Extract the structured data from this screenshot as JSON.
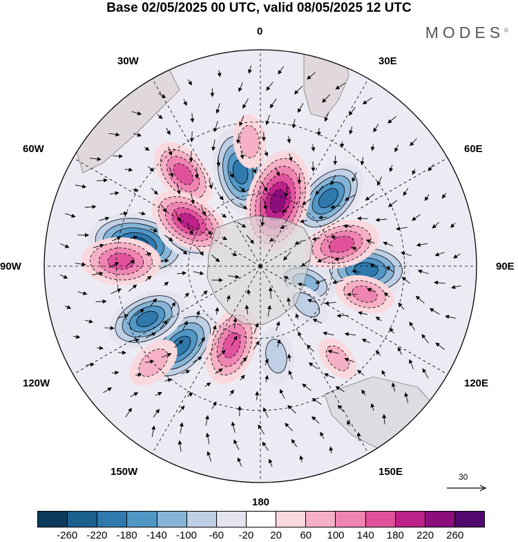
{
  "title": "Base 02/05/2025 00 UTC, valid 08/05/2025 12 UTC",
  "brand": "MODES",
  "brand_mark": "©",
  "meridian_labels": {
    "m0": "0",
    "m30e": "30E",
    "m60e": "60E",
    "m90e": "90E",
    "m120e": "120E",
    "m150e": "150E",
    "m180": "180",
    "m150w": "150W",
    "m120w": "120W",
    "m90w": "90W",
    "m60w": "60W",
    "m30w": "30W"
  },
  "reference_vector": {
    "value": "30"
  },
  "colorbar": {
    "colors": [
      "#0d3b5c",
      "#1b5f8f",
      "#2f79ad",
      "#5197c6",
      "#86b4d6",
      "#bfcfe5",
      "#e3e4f0",
      "#ffffff",
      "#f9d8de",
      "#f5b0c6",
      "#ee84b2",
      "#e0529b",
      "#bd218a",
      "#8c0d7c",
      "#52086e"
    ],
    "tick_labels": [
      "-260",
      "-220",
      "-180",
      "-140",
      "-100",
      "-60",
      "-20",
      "20",
      "60",
      "100",
      "140",
      "180",
      "220",
      "260"
    ]
  },
  "anomaly_cells": [
    {
      "lon": -135,
      "lat": 43,
      "value": -200
    },
    {
      "lon": -115,
      "lat": 38,
      "value": -180
    },
    {
      "lon": -80,
      "lat": 38,
      "value": -240
    },
    {
      "lon": -68,
      "lat": 58,
      "value": -120
    },
    {
      "lon": -12,
      "lat": 50,
      "value": -200
    },
    {
      "lon": 45,
      "lat": 50,
      "value": -190
    },
    {
      "lon": 92,
      "lat": 46,
      "value": -200
    },
    {
      "lon": 110,
      "lat": 70,
      "value": -110
    },
    {
      "lon": 170,
      "lat": 52,
      "value": -90
    },
    {
      "lon": -88,
      "lat": 32,
      "value": 170
    },
    {
      "lon": -40,
      "lat": 40,
      "value": 150
    },
    {
      "lon": 15,
      "lat": 62,
      "value": 250
    },
    {
      "lon": -58,
      "lat": 55,
      "value": 180
    },
    {
      "lon": 75,
      "lat": 55,
      "value": 160
    },
    {
      "lon": 105,
      "lat": 45,
      "value": 100
    },
    {
      "lon": -160,
      "lat": 55,
      "value": 170
    },
    {
      "lon": -132,
      "lat": 30,
      "value": 90
    },
    {
      "lon": 140,
      "lat": 40,
      "value": 60
    },
    {
      "lon": -5,
      "lat": 38,
      "value": 80
    },
    {
      "lon": 130,
      "lat": 65,
      "value": -70
    }
  ]
}
